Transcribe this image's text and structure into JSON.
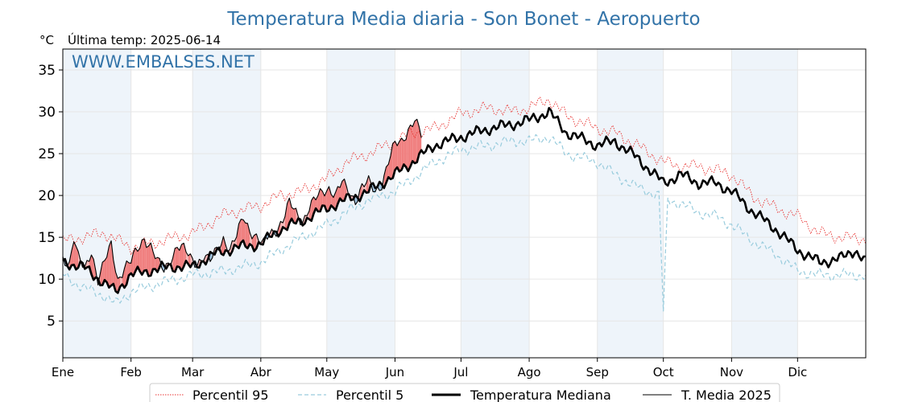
{
  "chart_data": {
    "type": "line",
    "title": "Temperatura Media diaria - Son Bonet - Aeropuerto",
    "unit_label": "°C",
    "last_temp_label": "Última temp: 2025-06-14",
    "watermark": "WWW.EMBALSES.NET",
    "ylim": [
      0.6,
      37.5
    ],
    "yticks": [
      5,
      10,
      15,
      20,
      25,
      30,
      35
    ],
    "xlim": [
      1,
      366
    ],
    "month_labels": [
      "Ene",
      "Feb",
      "Mar",
      "Abr",
      "May",
      "Jun",
      "Jul",
      "Ago",
      "Sep",
      "Oct",
      "Nov",
      "Dic"
    ],
    "month_start_days": [
      1,
      32,
      60,
      91,
      121,
      152,
      182,
      213,
      244,
      274,
      305,
      335
    ],
    "shaded_months": [
      "Ene",
      "Mar",
      "May",
      "Jul",
      "Sep",
      "Nov"
    ],
    "grid": true,
    "legend_position": "bottom-center",
    "colors": {
      "p95": "#e8312f",
      "p5": "#99ccdd",
      "median": "#000000",
      "current": "#000000",
      "above_fill": "#f08080",
      "above_fill_light": "#f6b8b8",
      "below_fill": "#2e74b0",
      "below_fill_light": "#9ec2df",
      "band": "#eef4fa",
      "title": "#3273a8"
    },
    "series": [
      {
        "name": "Percentil 95",
        "style": "dotted-red",
        "anchors": [
          [
            1,
            14.5
          ],
          [
            10,
            15.0
          ],
          [
            20,
            15.5
          ],
          [
            32,
            13.8
          ],
          [
            45,
            14.5
          ],
          [
            60,
            15.5
          ],
          [
            75,
            17.8
          ],
          [
            91,
            18.8
          ],
          [
            100,
            20.0
          ],
          [
            110,
            20.5
          ],
          [
            121,
            22.0
          ],
          [
            130,
            24.0
          ],
          [
            140,
            25.0
          ],
          [
            152,
            26.5
          ],
          [
            160,
            27.5
          ],
          [
            170,
            28.0
          ],
          [
            182,
            29.8
          ],
          [
            195,
            30.5
          ],
          [
            205,
            30.0
          ],
          [
            213,
            30.5
          ],
          [
            222,
            31.5
          ],
          [
            230,
            29.5
          ],
          [
            244,
            28.0
          ],
          [
            252,
            27.5
          ],
          [
            262,
            26.0
          ],
          [
            274,
            24.0
          ],
          [
            282,
            23.5
          ],
          [
            290,
            23.5
          ],
          [
            298,
            23.0
          ],
          [
            305,
            22.5
          ],
          [
            315,
            19.8
          ],
          [
            325,
            18.5
          ],
          [
            335,
            17.5
          ],
          [
            345,
            15.5
          ],
          [
            355,
            15.0
          ],
          [
            366,
            14.8
          ]
        ],
        "wiggle": 0.9
      },
      {
        "name": "Percentil 5",
        "style": "dashed-lightblue",
        "anchors": [
          [
            1,
            10.5
          ],
          [
            10,
            9.0
          ],
          [
            20,
            8.0
          ],
          [
            25,
            7.0
          ],
          [
            32,
            8.5
          ],
          [
            45,
            9.5
          ],
          [
            60,
            10.5
          ],
          [
            75,
            11.0
          ],
          [
            91,
            12.0
          ],
          [
            100,
            13.5
          ],
          [
            110,
            15.0
          ],
          [
            121,
            16.5
          ],
          [
            130,
            18.0
          ],
          [
            140,
            19.5
          ],
          [
            152,
            20.5
          ],
          [
            160,
            22.0
          ],
          [
            170,
            24.0
          ],
          [
            182,
            25.5
          ],
          [
            195,
            26.0
          ],
          [
            205,
            26.5
          ],
          [
            213,
            26.5
          ],
          [
            222,
            27.0
          ],
          [
            230,
            25.0
          ],
          [
            244,
            24.0
          ],
          [
            252,
            22.5
          ],
          [
            262,
            21.0
          ],
          [
            272,
            20.0
          ],
          [
            274,
            6.0
          ],
          [
            276,
            19.5
          ],
          [
            282,
            19.0
          ],
          [
            290,
            18.0
          ],
          [
            298,
            17.5
          ],
          [
            305,
            16.5
          ],
          [
            315,
            14.5
          ],
          [
            325,
            13.0
          ],
          [
            335,
            11.0
          ],
          [
            345,
            10.5
          ],
          [
            355,
            10.5
          ],
          [
            366,
            10.5
          ]
        ],
        "wiggle": 0.8
      },
      {
        "name": "Temperatura Mediana",
        "style": "thick-black",
        "anchors": [
          [
            1,
            12.0
          ],
          [
            10,
            11.5
          ],
          [
            20,
            9.5
          ],
          [
            25,
            8.5
          ],
          [
            32,
            10.5
          ],
          [
            40,
            11.0
          ],
          [
            50,
            11.5
          ],
          [
            60,
            11.5
          ],
          [
            70,
            13.0
          ],
          [
            80,
            13.8
          ],
          [
            91,
            14.2
          ],
          [
            100,
            16.0
          ],
          [
            110,
            17.0
          ],
          [
            121,
            18.5
          ],
          [
            130,
            19.5
          ],
          [
            140,
            20.5
          ],
          [
            152,
            22.5
          ],
          [
            160,
            24.0
          ],
          [
            170,
            26.0
          ],
          [
            182,
            27.0
          ],
          [
            195,
            28.0
          ],
          [
            205,
            28.5
          ],
          [
            213,
            29.0
          ],
          [
            222,
            30.0
          ],
          [
            230,
            27.5
          ],
          [
            244,
            26.0
          ],
          [
            252,
            26.5
          ],
          [
            262,
            24.5
          ],
          [
            274,
            21.5
          ],
          [
            282,
            22.5
          ],
          [
            290,
            21.5
          ],
          [
            298,
            21.5
          ],
          [
            305,
            20.5
          ],
          [
            315,
            18.0
          ],
          [
            325,
            16.0
          ],
          [
            335,
            13.5
          ],
          [
            345,
            12.0
          ],
          [
            355,
            12.5
          ],
          [
            361,
            13.5
          ],
          [
            366,
            12.0
          ]
        ],
        "wiggle": 0.8
      },
      {
        "name": "T. Media 2025",
        "style": "thin-black",
        "anchors": [
          [
            1,
            12.5
          ],
          [
            4,
            12.0
          ],
          [
            6,
            15.0
          ],
          [
            8,
            12.5
          ],
          [
            11,
            11.0
          ],
          [
            14,
            13.5
          ],
          [
            17,
            10.0
          ],
          [
            20,
            12.0
          ],
          [
            23,
            14.0
          ],
          [
            26,
            10.0
          ],
          [
            29,
            11.5
          ],
          [
            32,
            12.0
          ],
          [
            35,
            13.5
          ],
          [
            38,
            15.0
          ],
          [
            41,
            14.0
          ],
          [
            44,
            12.0
          ],
          [
            47,
            11.0
          ],
          [
            50,
            12.5
          ],
          [
            53,
            14.0
          ],
          [
            56,
            13.5
          ],
          [
            59,
            12.5
          ],
          [
            62,
            12.0
          ],
          [
            65,
            12.8
          ],
          [
            68,
            12.0
          ],
          [
            71,
            13.5
          ],
          [
            74,
            15.0
          ],
          [
            77,
            13.5
          ],
          [
            80,
            15.0
          ],
          [
            83,
            17.5
          ],
          [
            86,
            16.0
          ],
          [
            89,
            15.0
          ],
          [
            92,
            14.0
          ],
          [
            95,
            15.5
          ],
          [
            98,
            16.0
          ],
          [
            101,
            17.0
          ],
          [
            104,
            19.0
          ],
          [
            107,
            18.0
          ],
          [
            110,
            17.0
          ],
          [
            113,
            18.5
          ],
          [
            116,
            19.5
          ],
          [
            119,
            20.5
          ],
          [
            122,
            21.0
          ],
          [
            125,
            20.0
          ],
          [
            128,
            21.5
          ],
          [
            131,
            20.5
          ],
          [
            134,
            19.5
          ],
          [
            137,
            21.0
          ],
          [
            140,
            21.5
          ],
          [
            143,
            20.5
          ],
          [
            146,
            21.5
          ],
          [
            149,
            24.0
          ],
          [
            152,
            26.0
          ],
          [
            155,
            26.5
          ],
          [
            158,
            28.0
          ],
          [
            161,
            29.0
          ],
          [
            164,
            27.0
          ]
        ],
        "wiggle": 0.9
      }
    ]
  }
}
